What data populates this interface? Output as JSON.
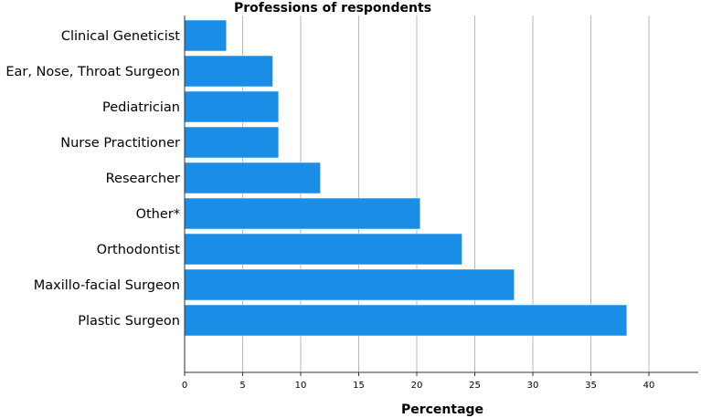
{
  "chart_data": {
    "type": "bar",
    "orientation": "horizontal",
    "title": "Professions of respondents",
    "xlabel": "Percentage",
    "ylabel": "",
    "categories": [
      "Clinical Geneticist",
      "Ear, Nose, Throat Surgeon",
      "Pediatrician",
      "Nurse Practitioner",
      "Researcher",
      "Other*",
      "Orthodontist",
      "Maxillo-facial Surgeon",
      "Plastic Surgeon"
    ],
    "values": [
      3.6,
      7.6,
      8.1,
      8.1,
      11.7,
      20.3,
      23.9,
      28.4,
      38.1
    ],
    "xlim": [
      0,
      44
    ],
    "xticks": [
      "0",
      "5",
      "10",
      "15",
      "20",
      "25",
      "30",
      "35",
      "40"
    ],
    "grid": "vertical",
    "bar_color": "#1a8ee6"
  }
}
